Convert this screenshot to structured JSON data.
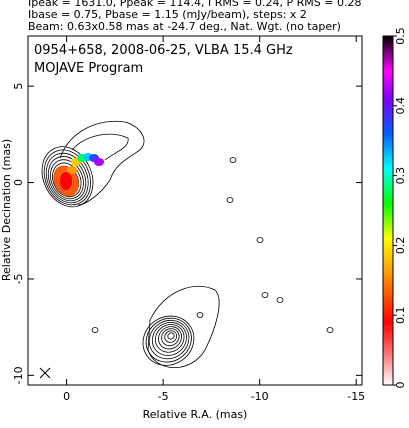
{
  "chart_data": {
    "type": "contour",
    "header": [
      "Ipeak = 1631.0, Ppeak = 114.4, I RMS = 0.24, P RMS = 0.28",
      "Ibase = 0.75, Pbase = 1.15 (mJy/beam), steps: x 2",
      "Beam: 0.63x0.58 mas at -24.7 deg., Nat. Wgt. (no taper)"
    ],
    "title": "0954+658, 2008-06-25, VLBA 15.4 GHz",
    "subtitle": "MOJAVE Program",
    "x_label": "Relative R.A. (mas)",
    "y_label": "Relative Decination (mas)",
    "xlim": [
      2,
      -15.3
    ],
    "xticks": [
      0,
      -5,
      -10,
      -15
    ],
    "ylim": [
      -10.5,
      7.6
    ],
    "yticks": [
      -10,
      -5,
      0,
      5
    ],
    "colorbar_lim": [
      0,
      0.5
    ],
    "colorbar_ticks": [
      0,
      0.1,
      0.2,
      0.3,
      0.4,
      0.5
    ]
  }
}
